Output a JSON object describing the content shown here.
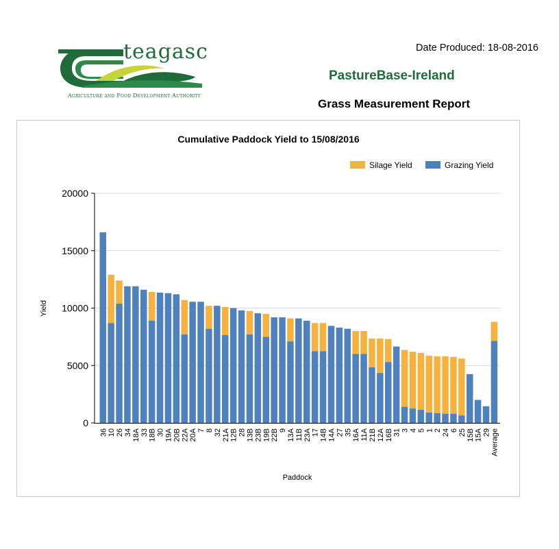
{
  "header": {
    "logo_name": "teagasc",
    "logo_tagline": "Agriculture and Food Development Authority",
    "date_produced": "Date Produced: 18-08-2016",
    "brand": "PastureBase-Ireland",
    "report_title": "Grass Measurement Report"
  },
  "colors": {
    "grazing": "#4f81bd",
    "silage": "#f6b23d",
    "brand_green": "#1f6b3a"
  },
  "chart_data": {
    "type": "bar",
    "stacked": true,
    "title": "Cumulative Paddock Yield to 15/08/2016",
    "xlabel": "Paddock",
    "ylabel": "Yield",
    "ylim": [
      0,
      20000
    ],
    "yticks": [
      0,
      5000,
      10000,
      15000,
      20000
    ],
    "legend_position": "top-right",
    "categories": [
      "36",
      "10",
      "26",
      "34",
      "18A",
      "33",
      "18B",
      "30",
      "19A",
      "20B",
      "22A",
      "20A",
      "7",
      "8",
      "32",
      "21A",
      "12B",
      "28",
      "13B",
      "23B",
      "19B",
      "22B",
      "9",
      "13A",
      "11B",
      "23A",
      "17",
      "14B",
      "14A",
      "27",
      "35",
      "16A",
      "11A",
      "21B",
      "12A",
      "16B",
      "31",
      "3",
      "4",
      "5",
      "1",
      "2",
      "24",
      "6",
      "25",
      "15B",
      "15A",
      "29",
      "Average"
    ],
    "series": [
      {
        "name": "Grazing Yield",
        "color": "#4f81bd",
        "values": [
          16600,
          8700,
          10400,
          11900,
          11900,
          11600,
          8900,
          11350,
          11300,
          11200,
          7700,
          10550,
          10550,
          8200,
          10200,
          7650,
          10000,
          9800,
          7700,
          9550,
          7500,
          9200,
          9200,
          7100,
          9100,
          8900,
          6250,
          6250,
          8450,
          8300,
          8200,
          6000,
          6000,
          4850,
          4350,
          5300,
          6650,
          1400,
          1250,
          1150,
          900,
          850,
          800,
          800,
          650,
          4250,
          2000,
          1450,
          7150
        ]
      },
      {
        "name": "Silage Yield",
        "color": "#f6b23d",
        "values": [
          0,
          4200,
          2000,
          0,
          0,
          0,
          2500,
          0,
          0,
          0,
          3000,
          0,
          0,
          2000,
          0,
          2450,
          0,
          0,
          2050,
          0,
          2000,
          0,
          0,
          2000,
          0,
          0,
          2450,
          2450,
          0,
          0,
          0,
          2000,
          2000,
          2500,
          3000,
          2000,
          0,
          4950,
          4950,
          4950,
          4950,
          4950,
          5000,
          4950,
          4950,
          0,
          0,
          0,
          1650
        ]
      }
    ]
  }
}
